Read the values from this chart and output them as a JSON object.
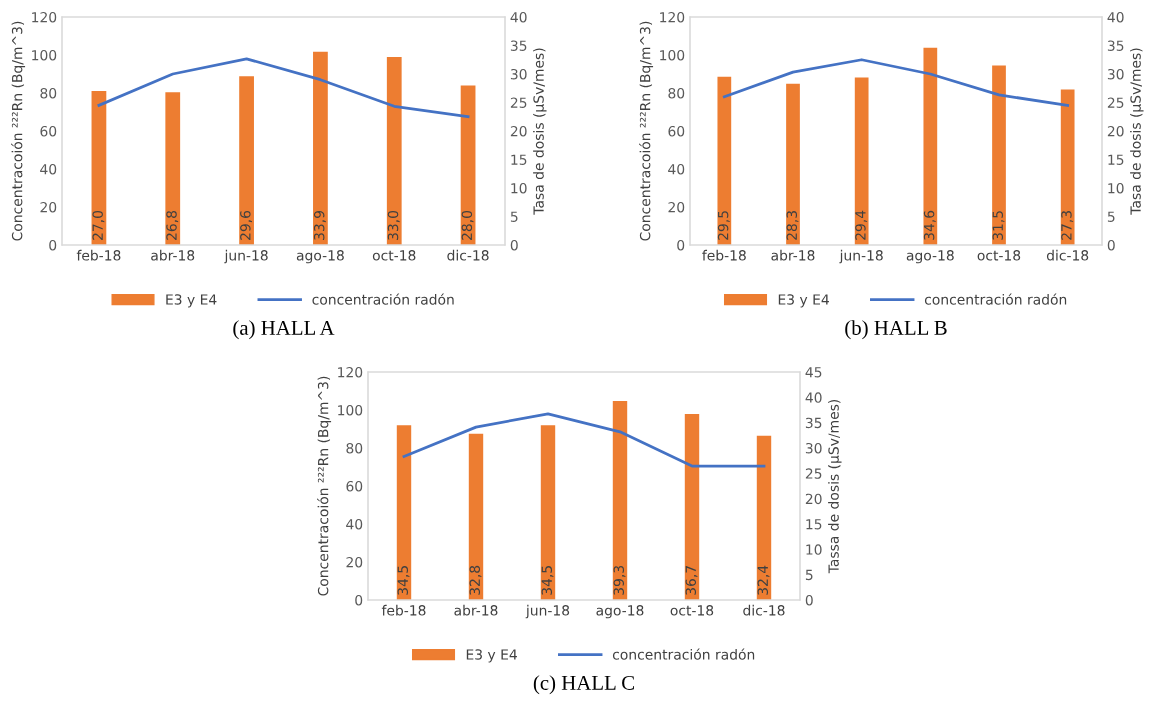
{
  "chart_data": [
    {
      "type": "bar",
      "title": "(a) HALL A",
      "ylabel": "Concentracoión ²²²Rn (Bq/m^3)",
      "y2label": "Tasa de dosis (µSv/mes)",
      "categories": [
        "feb-18",
        "abr-18",
        "jun-18",
        "ago-18",
        "oct-18",
        "dic-18"
      ],
      "series": [
        {
          "name": "E3 y E4",
          "axis": "y2",
          "color": "#ed7d31",
          "values": [
            27.0,
            26.8,
            29.6,
            33.9,
            33.0,
            28.0
          ],
          "value_labels": [
            "27,0",
            "26,8",
            "29,6",
            "33,9",
            "33,0",
            "28,0"
          ]
        },
        {
          "name": "concentración radón",
          "type": "line",
          "color": "#4472c4",
          "values": [
            73.5,
            90,
            98,
            87,
            73,
            67.5
          ]
        }
      ],
      "ylim": [
        0,
        120
      ],
      "yticks": [
        0,
        20,
        40,
        60,
        80,
        100,
        120
      ],
      "y2lim": [
        0,
        40
      ],
      "y2ticks": [
        0,
        5,
        10,
        15,
        20,
        25,
        30,
        35,
        40
      ],
      "legend": "bottom",
      "grid": false
    },
    {
      "type": "bar",
      "title": "(b) HALL B",
      "ylabel": "Concentracoión ²²²Rn (Bq/m^3)",
      "y2label": "Tasa de dosis (µSv/mes)",
      "categories": [
        "feb-18",
        "abr-18",
        "jun-18",
        "ago-18",
        "oct-18",
        "dic-18"
      ],
      "series": [
        {
          "name": "E3 y E4",
          "axis": "y2",
          "color": "#ed7d31",
          "values": [
            29.5,
            28.3,
            29.4,
            34.6,
            31.5,
            27.3
          ],
          "value_labels": [
            "29,5",
            "28,3",
            "29,4",
            "34,6",
            "31,5",
            "27,3"
          ]
        },
        {
          "name": "concentración radón",
          "type": "line",
          "color": "#4472c4",
          "values": [
            78,
            91,
            97.5,
            90,
            79,
            73.5
          ]
        }
      ],
      "ylim": [
        0,
        120
      ],
      "yticks": [
        0,
        20,
        40,
        60,
        80,
        100,
        120
      ],
      "y2lim": [
        0,
        40
      ],
      "y2ticks": [
        0,
        5,
        10,
        15,
        20,
        25,
        30,
        35,
        40
      ],
      "legend": "bottom",
      "grid": false
    },
    {
      "type": "bar",
      "title": "(c) HALL C",
      "ylabel": "Concentracoión ²²²Rn (Bq/m^3)",
      "y2label": "Tassa de dosis (µSv/mes)",
      "categories": [
        "feb-18",
        "abr-18",
        "jun-18",
        "ago-18",
        "oct-18",
        "dic-18"
      ],
      "series": [
        {
          "name": "E3 y E4",
          "axis": "y2",
          "color": "#ed7d31",
          "values": [
            34.5,
            32.8,
            34.5,
            39.3,
            36.7,
            32.4
          ],
          "value_labels": [
            "34,5",
            "32,8",
            "34,5",
            "39,3",
            "36,7",
            "32,4"
          ]
        },
        {
          "name": "concentración radón",
          "type": "line",
          "color": "#4472c4",
          "values": [
            75.5,
            91,
            98,
            88.5,
            70.5,
            70.5
          ]
        }
      ],
      "ylim": [
        0,
        120
      ],
      "yticks": [
        0,
        20,
        40,
        60,
        80,
        100,
        120
      ],
      "y2lim": [
        0,
        45
      ],
      "y2ticks": [
        0,
        5,
        10,
        15,
        20,
        25,
        30,
        35,
        40,
        45
      ],
      "legend": "bottom",
      "grid": false
    }
  ]
}
